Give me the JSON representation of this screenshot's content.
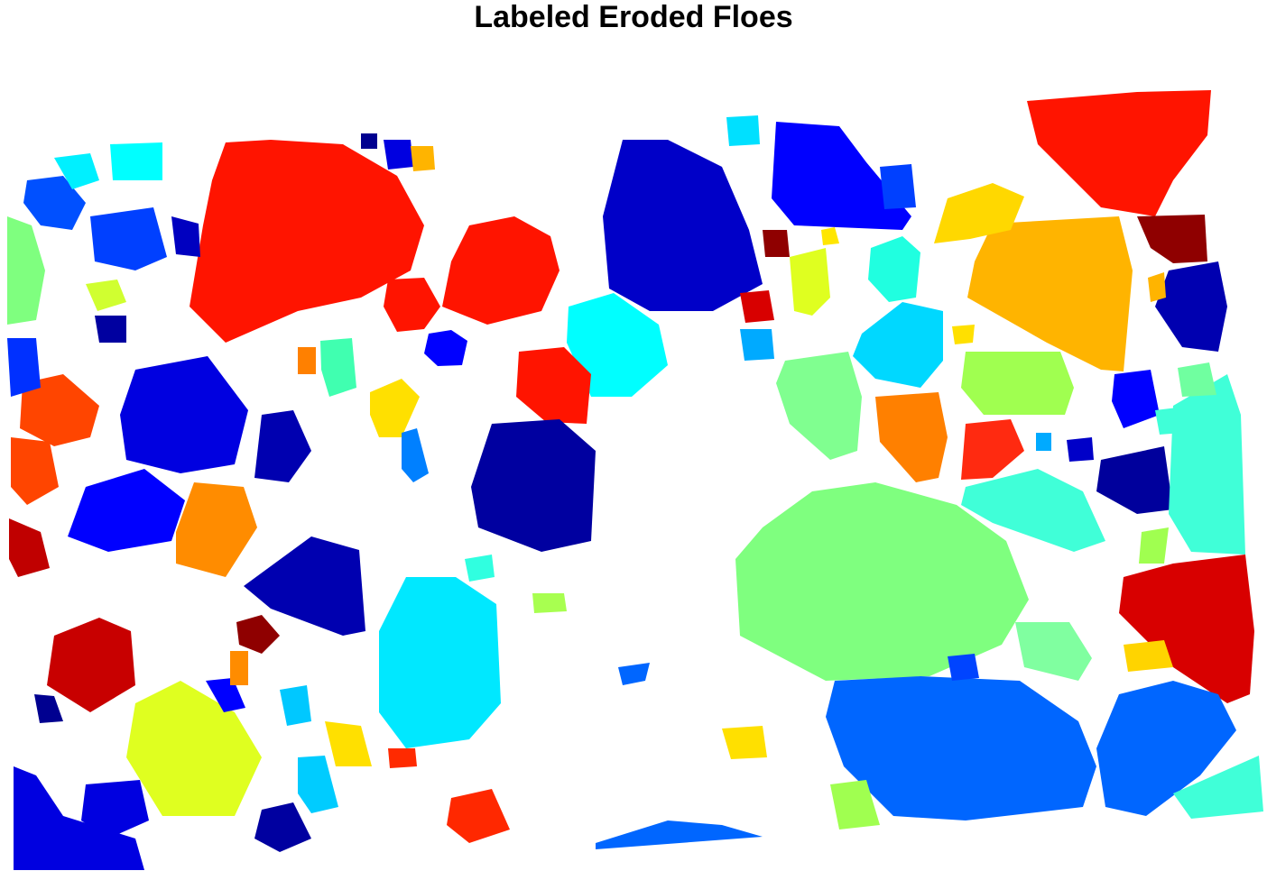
{
  "figure": {
    "title": "Labeled Eroded Floes"
  },
  "colormap": {
    "name": "jet",
    "colors": [
      "#00008f",
      "#0000ff",
      "#0066ff",
      "#00c8ff",
      "#00ffff",
      "#40ffd8",
      "#7fff7f",
      "#a0ff50",
      "#dfff20",
      "#ffea00",
      "#ffb400",
      "#ff8000",
      "#ff4500",
      "#ff1400",
      "#d00000",
      "#8f0000"
    ]
  },
  "background_color": "#ffffff"
}
